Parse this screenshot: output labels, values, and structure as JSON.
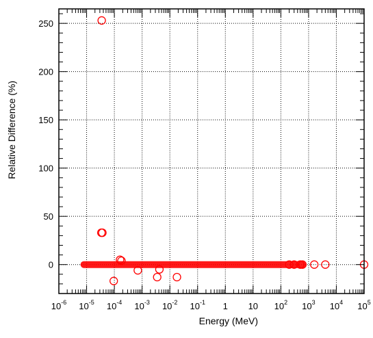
{
  "chart_data": {
    "type": "scatter",
    "title": "",
    "xlabel": "Energy (MeV)",
    "ylabel": "Relative Difference (%)",
    "x_scale": "log",
    "xlim": [
      1e-06,
      100000.0
    ],
    "ylim": [
      -30,
      265
    ],
    "grid": true,
    "marker": "open-circle",
    "color": "#ff0000",
    "x_ticks": [
      {
        "base": "10",
        "exp": "-6",
        "value": 1e-06
      },
      {
        "base": "10",
        "exp": "-5",
        "value": 1e-05
      },
      {
        "base": "10",
        "exp": "-4",
        "value": 0.0001
      },
      {
        "base": "10",
        "exp": "-3",
        "value": 0.001
      },
      {
        "base": "10",
        "exp": "-2",
        "value": 0.01
      },
      {
        "base": "10",
        "exp": "-1",
        "value": 0.1
      },
      {
        "base": "1",
        "exp": "",
        "value": 1
      },
      {
        "base": "10",
        "exp": "",
        "value": 10
      },
      {
        "base": "10",
        "exp": "2",
        "value": 100.0
      },
      {
        "base": "10",
        "exp": "3",
        "value": 1000.0
      },
      {
        "base": "10",
        "exp": "4",
        "value": 10000.0
      },
      {
        "base": "10",
        "exp": "5",
        "value": 100000.0
      }
    ],
    "y_ticks": [
      0,
      50,
      100,
      150,
      200,
      250
    ],
    "points": [
      {
        "x": 3.5e-05,
        "y": 253
      },
      {
        "x": 3.4e-05,
        "y": 33
      },
      {
        "x": 3.7e-05,
        "y": 33
      },
      {
        "x": 9.5e-05,
        "y": -17
      },
      {
        "x": 0.00016,
        "y": 5
      },
      {
        "x": 0.00018,
        "y": 4
      },
      {
        "x": 0.0007,
        "y": -6
      },
      {
        "x": 0.0035,
        "y": -13
      },
      {
        "x": 0.0042,
        "y": -5
      },
      {
        "x": 0.018,
        "y": -13
      },
      {
        "x": 200.0,
        "y": 0
      },
      {
        "x": 300.0,
        "y": 0
      },
      {
        "x": 500.0,
        "y": 0
      },
      {
        "x": 600.0,
        "y": 0
      },
      {
        "x": 1600.0,
        "y": 0
      },
      {
        "x": 4000.0,
        "y": 0
      },
      {
        "x": 100000.0,
        "y": 0
      }
    ],
    "dense_band": {
      "x_start": 8e-06,
      "x_end": 600.0,
      "y": 0
    }
  }
}
